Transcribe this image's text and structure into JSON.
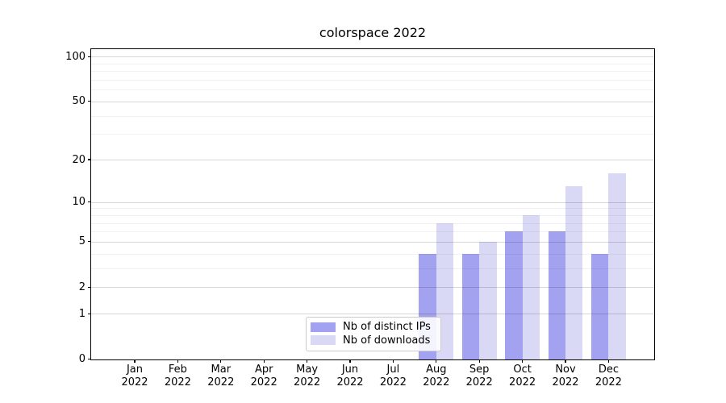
{
  "chart_data": {
    "type": "bar",
    "title": "colorspace 2022",
    "months": [
      "Jan",
      "Feb",
      "Mar",
      "Apr",
      "May",
      "Jun",
      "Jul",
      "Aug",
      "Sep",
      "Oct",
      "Nov",
      "Dec"
    ],
    "year": "2022",
    "series": [
      {
        "name": "Nb of distinct IPs",
        "color": "#a2a2f0",
        "values": [
          0,
          0,
          0,
          0,
          0,
          0,
          0,
          4,
          4,
          6,
          6,
          4
        ]
      },
      {
        "name": "Nb of downloads",
        "color": "#d9d9f6",
        "values": [
          0,
          0,
          0,
          0,
          0,
          0,
          0,
          7,
          5,
          8,
          13,
          16
        ]
      }
    ],
    "y_scale": "log10(1+x)",
    "y_major_ticks": [
      0,
      1,
      2,
      5,
      10,
      20,
      50,
      100
    ],
    "y_minor_ticks": [
      3,
      4,
      6,
      7,
      8,
      9,
      30,
      40,
      60,
      70,
      80,
      90
    ],
    "y_max": 113,
    "ylim": [
      0,
      113
    ],
    "grid": "horizontal, major and minor, drawn over bars",
    "legend_position": "lower center inside plot",
    "colors": {
      "background": "#ffffff",
      "axis": "#000000",
      "major_grid": "#d9d9d9",
      "minor_grid": "#f2f2f2"
    }
  }
}
